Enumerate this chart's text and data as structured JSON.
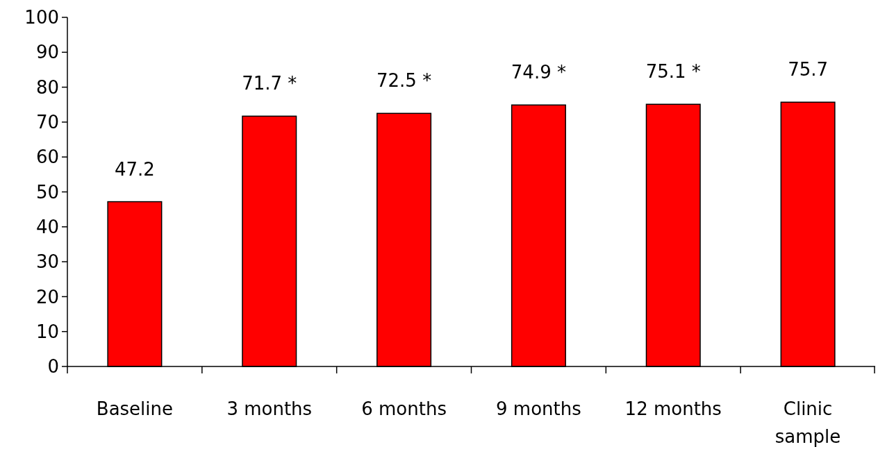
{
  "chart_data": {
    "type": "bar",
    "categories": [
      "Baseline",
      "3 months",
      "6 months",
      "9 months",
      "12 months",
      "Clinic sample"
    ],
    "values": [
      47.2,
      71.7,
      72.5,
      74.9,
      75.1,
      75.7
    ],
    "value_labels": [
      "47.2",
      "71.7 *",
      "72.5 *",
      "74.9 *",
      "75.1 *",
      "75.7"
    ],
    "color": "#ff0000",
    "ylim": [
      0,
      100
    ],
    "yticks": [
      0,
      10,
      20,
      30,
      40,
      50,
      60,
      70,
      80,
      90,
      100
    ]
  }
}
